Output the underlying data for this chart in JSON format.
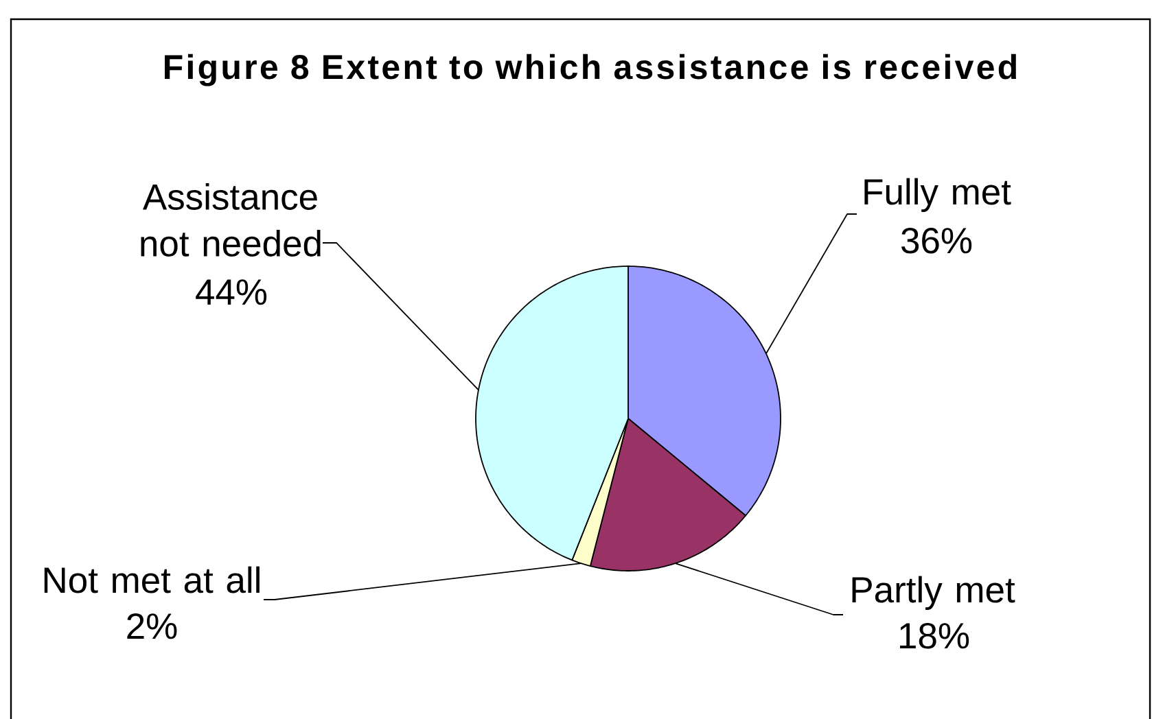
{
  "chart_data": {
    "type": "pie",
    "title": "Figure 8 Extent to which assistance is received",
    "categories": [
      "Fully met",
      "Partly met",
      "Not met at all",
      "Assistance not needed"
    ],
    "values": [
      36,
      18,
      2,
      44
    ],
    "value_labels": [
      "36%",
      "18%",
      "2%",
      "44%"
    ],
    "colors": [
      "#9999ff",
      "#993366",
      "#ffffcc",
      "#ccffff"
    ]
  }
}
